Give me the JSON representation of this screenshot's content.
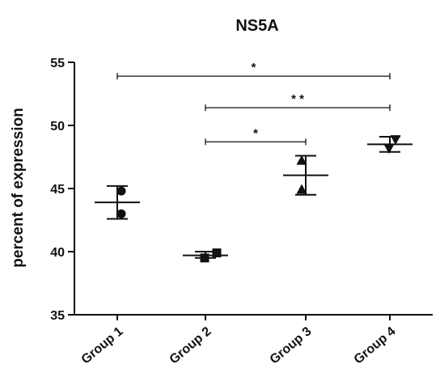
{
  "chart_data": {
    "type": "scatter",
    "title": "NS5A",
    "xlabel": "",
    "ylabel": "percent of expression",
    "ylim": [
      35,
      55
    ],
    "yticks": [
      "35",
      "40",
      "45",
      "50",
      "55"
    ],
    "categories": [
      "Group 1",
      "Group 2",
      "Group 3",
      "Group 4"
    ],
    "markers": [
      "circle",
      "square",
      "triangle-up",
      "triangle-down"
    ],
    "groups": [
      {
        "name": "Group 1",
        "points": [
          44.8,
          43.0
        ],
        "mean": 43.9,
        "err_low": 42.6,
        "err_high": 45.2
      },
      {
        "name": "Group 2",
        "points": [
          39.5,
          39.9
        ],
        "mean": 39.7,
        "err_low": 39.5,
        "err_high": 40.0
      },
      {
        "name": "Group 3",
        "points": [
          47.2,
          44.9
        ],
        "mean": 46.05,
        "err_low": 44.5,
        "err_high": 47.6
      },
      {
        "name": "Group 4",
        "points": [
          48.2,
          48.9
        ],
        "mean": 48.5,
        "err_low": 47.9,
        "err_high": 49.1
      }
    ],
    "significance": [
      {
        "from": "Group 1",
        "to": "Group 4",
        "label": "*",
        "y": 53.9
      },
      {
        "from": "Group 2",
        "to": "Group 4",
        "label": "* *",
        "y": 51.4
      },
      {
        "from": "Group 2",
        "to": "Group 3",
        "label": "*",
        "y": 48.7
      }
    ],
    "grid": false,
    "colors": {
      "ink": "#111111",
      "background": "#ffffff"
    }
  }
}
